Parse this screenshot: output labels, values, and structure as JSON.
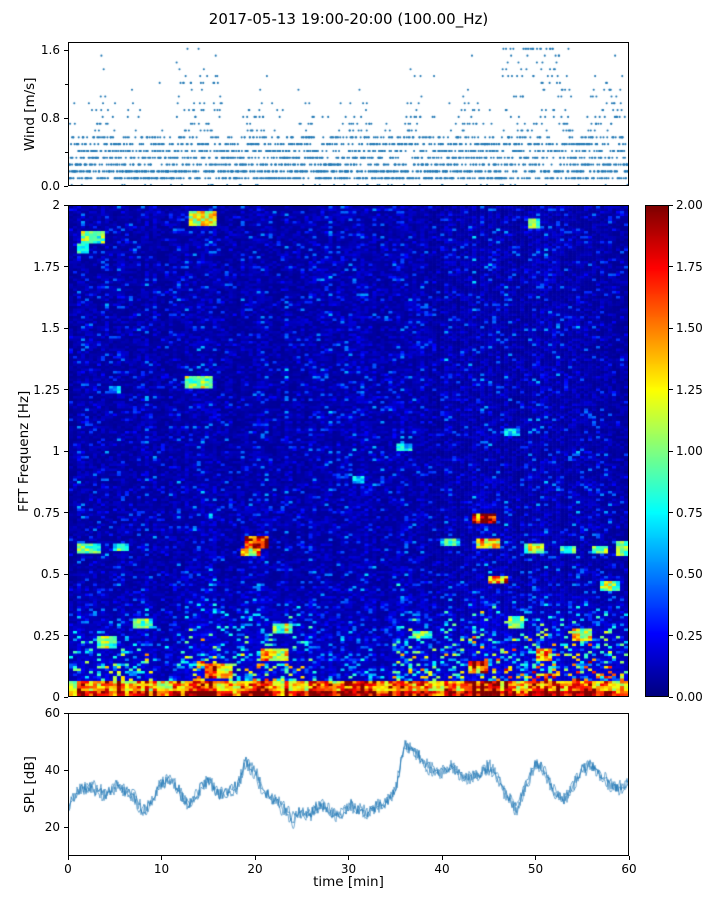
{
  "title": "2017-05-13 19:00-20:00 (100.00_Hz)",
  "accent_color": "#1f77b4",
  "chart_data": [
    {
      "type": "scatter",
      "name": "wind",
      "ylabel": "Wind [m/s]",
      "xlim": [
        0,
        60
      ],
      "ylim": [
        0,
        1.7
      ],
      "yticks": [
        0.0,
        0.8,
        1.6
      ],
      "ytick_labels": [
        "0.0",
        "0.8",
        "1.6"
      ],
      "minor_yticks": [
        0.4,
        1.2
      ],
      "marker_color": "#1f77b4",
      "n_points": 2800,
      "quantization": 0.0815,
      "seed": 42,
      "gusts": [
        [
          2.5,
          5,
          0.5
        ],
        [
          11.5,
          16.5,
          0.95
        ],
        [
          19,
          21,
          0.55
        ],
        [
          24.5,
          26.5,
          0.5
        ],
        [
          30,
          32.5,
          0.5
        ],
        [
          36,
          38,
          0.6
        ],
        [
          41.5,
          44,
          0.5
        ],
        [
          46.5,
          54,
          1.3
        ],
        [
          56,
          59.5,
          0.85
        ]
      ]
    },
    {
      "type": "heatmap",
      "name": "spectrogram",
      "ylabel": "FFT Frequenz [Hz]",
      "xlim": [
        0,
        60
      ],
      "ylim": [
        0,
        2
      ],
      "yticks": [
        0,
        0.25,
        0.5,
        0.75,
        1,
        1.25,
        1.5,
        1.75,
        2
      ],
      "ytick_labels": [
        "0",
        "0.25",
        "0.5",
        "0.75",
        "1",
        "1.25",
        "1.5",
        "1.75",
        "2"
      ],
      "colormap": "jet",
      "colorbar": {
        "min": 0,
        "max": 2,
        "tick_labels": [
          "2.00",
          "1.75",
          "1.50",
          "1.25",
          "1.00",
          "0.75",
          "0.50",
          "0.25",
          "0.00"
        ]
      },
      "grid": {
        "nt": 140,
        "nf": 196
      },
      "seed": 7,
      "activity_windows": [
        [
          0,
          9,
          0.95
        ],
        [
          9,
          12,
          0.55
        ],
        [
          12,
          26,
          1.05
        ],
        [
          26,
          34.5,
          0.5
        ],
        [
          34.5,
          47,
          1.0
        ],
        [
          47,
          60,
          1.15
        ]
      ],
      "column_boosts": [
        [
          13.5,
          16.5,
          1.12
        ],
        [
          19,
          22,
          1.1
        ],
        [
          43.5,
          47,
          1.15
        ],
        [
          55,
          60,
          1.1
        ]
      ],
      "hotspots": [
        [
          2.5,
          1.87,
          2.5,
          0.05,
          0.95
        ],
        [
          1.5,
          1.83,
          1.5,
          0.04,
          0.7
        ],
        [
          14.5,
          1.95,
          3,
          0.06,
          1.05
        ],
        [
          50,
          1.93,
          1.5,
          0.04,
          0.8
        ],
        [
          14,
          1.28,
          3,
          0.06,
          0.9
        ],
        [
          5,
          1.25,
          1.2,
          0.03,
          0.55
        ],
        [
          2,
          0.6,
          2.5,
          0.04,
          0.95
        ],
        [
          5.5,
          0.61,
          1.5,
          0.03,
          0.8
        ],
        [
          20,
          0.63,
          2.5,
          0.05,
          1.55
        ],
        [
          19.5,
          0.59,
          2,
          0.03,
          1.1
        ],
        [
          44.5,
          0.72,
          2.5,
          0.04,
          1.45
        ],
        [
          45,
          0.62,
          3,
          0.04,
          1.0
        ],
        [
          41,
          0.63,
          2,
          0.03,
          0.8
        ],
        [
          50,
          0.6,
          2,
          0.04,
          1.0
        ],
        [
          53.5,
          0.6,
          1.5,
          0.03,
          0.8
        ],
        [
          57,
          0.6,
          2,
          0.03,
          0.9
        ],
        [
          59.5,
          0.6,
          1.5,
          0.06,
          1.1
        ],
        [
          46,
          0.47,
          2,
          0.03,
          1.15
        ],
        [
          23,
          0.28,
          2,
          0.04,
          1.0
        ],
        [
          22,
          0.17,
          3,
          0.05,
          1.2
        ],
        [
          36,
          1.02,
          2,
          0.03,
          0.6
        ],
        [
          47.5,
          1.08,
          2,
          0.03,
          0.65
        ],
        [
          31,
          0.88,
          1.5,
          0.03,
          0.55
        ],
        [
          8,
          0.3,
          2,
          0.04,
          0.9
        ],
        [
          4,
          0.22,
          2,
          0.05,
          1.0
        ],
        [
          16,
          0.1,
          3,
          0.06,
          1.3
        ],
        [
          38,
          0.25,
          2,
          0.04,
          0.9
        ],
        [
          48,
          0.3,
          2,
          0.05,
          1.0
        ],
        [
          55,
          0.25,
          2,
          0.05,
          1.1
        ],
        [
          58,
          0.45,
          2,
          0.04,
          1.0
        ],
        [
          51,
          0.17,
          2,
          0.05,
          1.2
        ],
        [
          44,
          0.12,
          2,
          0.05,
          1.3
        ]
      ]
    },
    {
      "type": "line",
      "name": "spl",
      "ylabel": "SPL [dB]",
      "xlabel": "time [min]",
      "xlim": [
        0,
        60
      ],
      "ylim": [
        10,
        60
      ],
      "yticks": [
        20,
        40,
        60
      ],
      "ytick_labels": [
        "20",
        "40",
        "60"
      ],
      "xticks": [
        0,
        10,
        20,
        30,
        40,
        50,
        60
      ],
      "xtick_labels": [
        "0",
        "10",
        "20",
        "30",
        "40",
        "50",
        "60"
      ],
      "line_color": "#1f77b4",
      "noise_amp": 2.2,
      "seed": 11,
      "keypoints_x": [
        0,
        1,
        2,
        3,
        4,
        5,
        6,
        7,
        8,
        9,
        10,
        11,
        12,
        13,
        14,
        15,
        16,
        17,
        18,
        19,
        20,
        21,
        22,
        23,
        24,
        25,
        26,
        27,
        28,
        29,
        30,
        31,
        32,
        33,
        34,
        35,
        36,
        37,
        38,
        39,
        40,
        41,
        42,
        43,
        44,
        45,
        46,
        47,
        48,
        49,
        50,
        51,
        52,
        53,
        54,
        55,
        56,
        57,
        58,
        59,
        60
      ],
      "keypoints_y": [
        27,
        33,
        34,
        33,
        31,
        35,
        32,
        30,
        25,
        30,
        36,
        37,
        31,
        28,
        33,
        37,
        31,
        32,
        34,
        43,
        40,
        32,
        30,
        27,
        23,
        26,
        25,
        28,
        26,
        24,
        28,
        27,
        25,
        27,
        29,
        33,
        49,
        47,
        43,
        40,
        39,
        41,
        38,
        37,
        39,
        41,
        37,
        31,
        25,
        34,
        42,
        40,
        33,
        28,
        34,
        40,
        42,
        38,
        36,
        34,
        36
      ]
    }
  ]
}
